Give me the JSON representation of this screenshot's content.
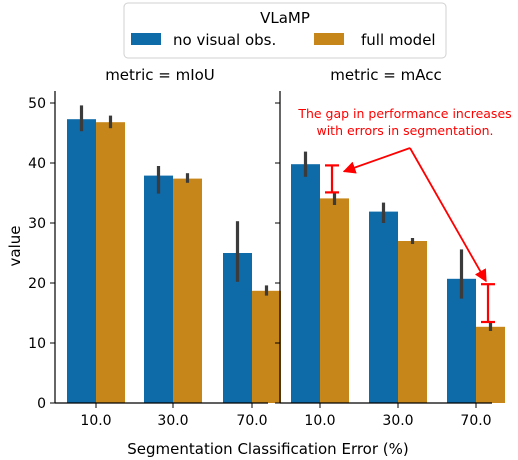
{
  "chart_data": {
    "type": "bar",
    "legend": {
      "title": "VLaMP",
      "placement": "top-center",
      "entries": [
        {
          "name": "no visual obs.",
          "color": "#0f6aa8"
        },
        {
          "name": "full model",
          "color": "#c7861a"
        }
      ]
    },
    "xlabel": "Segmentation Classification Error (%)",
    "ylabel": "value",
    "ylim": [
      0,
      52
    ],
    "yticks": [
      0,
      10,
      20,
      30,
      40,
      50
    ],
    "categories": [
      "10.0",
      "30.0",
      "70.0"
    ],
    "panels": [
      {
        "title": "metric = mIoU",
        "series": [
          {
            "name": "no visual obs.",
            "values": [
              47.3,
              37.9,
              25.0
            ],
            "err_low": [
              45.3,
              34.9,
              20.2
            ],
            "err_high": [
              49.6,
              39.5,
              30.3
            ]
          },
          {
            "name": "full model",
            "values": [
              46.8,
              37.4,
              18.7
            ],
            "err_low": [
              45.8,
              36.7,
              17.9
            ],
            "err_high": [
              47.9,
              38.3,
              19.6
            ]
          }
        ]
      },
      {
        "title": "metric = mAcc",
        "series": [
          {
            "name": "no visual obs.",
            "values": [
              39.8,
              31.9,
              20.7
            ],
            "err_low": [
              37.7,
              30.0,
              17.4
            ],
            "err_high": [
              41.9,
              33.4,
              25.6
            ]
          },
          {
            "name": "full model",
            "values": [
              34.1,
              27.0,
              12.7
            ],
            "err_low": [
              33.0,
              26.5,
              12.0
            ],
            "err_high": [
              35.2,
              27.5,
              13.4
            ]
          }
        ],
        "gap_markers": [
          {
            "category": "10.0",
            "y_top": 39.6,
            "y_bottom": 35.1
          },
          {
            "category": "70.0",
            "y_top": 19.8,
            "y_bottom": 13.5
          }
        ],
        "annotation": {
          "lines": [
            "The gap in performance increases",
            "with errors in segmentation."
          ],
          "color": "#ff0000",
          "arrow_targets": [
            "10.0",
            "70.0"
          ]
        }
      }
    ],
    "colors": {
      "no_visual": "#0f6aa8",
      "full_model": "#c7861a",
      "errorbar": "#3b3b3b",
      "annotation": "#ff0000"
    },
    "grid": false
  }
}
